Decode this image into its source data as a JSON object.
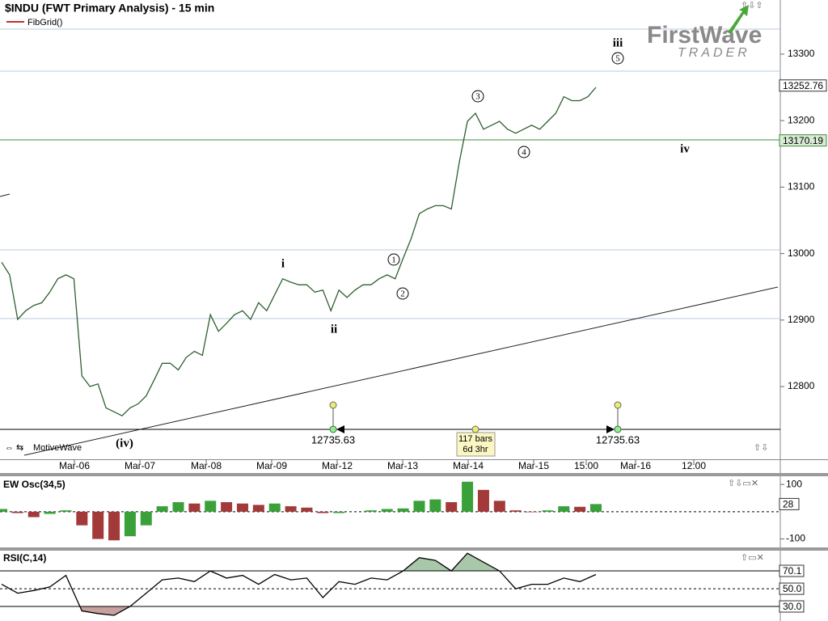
{
  "title": "$INDU (FWT Primary Analysis) - 15 min",
  "study": "FibGrid()",
  "workspace": "MotiveWave",
  "logo": {
    "name": "FirstWave",
    "tagline": "TRADER"
  },
  "chart_data": [
    {
      "type": "line",
      "color": "#2f5f2f",
      "ylim": [
        12690.6,
        13381.4
      ],
      "yticks": [
        12800,
        12900,
        13000,
        13100,
        13200,
        13300
      ],
      "xticks": [
        "Mar-06",
        "Mar-07",
        "Mar-08",
        "Mar-09",
        "Mar-12",
        "Mar-13",
        "Mar-14",
        "Mar-15",
        "15:00",
        "Mar-16",
        "12:00"
      ],
      "values": [
        12987,
        12968,
        12901,
        12914,
        12922,
        12926,
        12942,
        12962,
        12968,
        12962,
        12816,
        12800,
        12804,
        12768,
        12762,
        12756,
        12768,
        12774,
        12786,
        12810,
        12835,
        12835,
        12825,
        12844,
        12853,
        12847,
        12908,
        12883,
        12895,
        12908,
        12914,
        12901,
        12926,
        12914,
        12938,
        12962,
        12957,
        12953,
        12953,
        12942,
        12945,
        12914,
        12945,
        12934,
        12945,
        12953,
        12953,
        12962,
        12968,
        12962,
        12993,
        13023,
        13060,
        13067,
        13072,
        13072,
        13067,
        13138,
        13199,
        13211,
        13187,
        13193,
        13199,
        13187,
        13181,
        13187,
        13193,
        13187,
        13199,
        13211,
        13236,
        13230,
        13230,
        13236,
        13250
      ],
      "last_price": 13252.76,
      "fib_level": 13170.19,
      "measure_level": 12735.63,
      "measure_bars": "117 bars",
      "measure_time": "6d 3hr",
      "wave_labels": [
        "i",
        "ii",
        "iii",
        "iv",
        "(iv)",
        "1",
        "2",
        "3",
        "4",
        "5"
      ]
    },
    {
      "type": "bar",
      "title": "EW Osc(34,5)",
      "up_color": "#3aa13a",
      "down_color": "#a33a3a",
      "ylim": [
        -131,
        130
      ],
      "yticks": [
        100,
        -100
      ],
      "current_value": 28,
      "values": [
        10,
        -5,
        -20,
        -8,
        5,
        -50,
        -100,
        -105,
        -90,
        -50,
        20,
        35,
        30,
        40,
        35,
        30,
        25,
        30,
        20,
        15,
        -5,
        -5,
        0,
        5,
        10,
        12,
        40,
        45,
        35,
        110,
        80,
        40,
        5,
        -2,
        5,
        20,
        18,
        28
      ]
    },
    {
      "type": "line",
      "title": "RSI(C,14)",
      "color": "#000000",
      "over_color": "#a9c7a9",
      "under_color": "#c7a0a0",
      "ylim": [
        13.6,
        92
      ],
      "yticks": [
        70.1,
        {
          "value": 50,
          "label": "50.0"
        },
        {
          "value": 30,
          "label": "30.0"
        }
      ],
      "values": [
        55,
        45,
        48,
        52,
        65,
        25,
        22,
        20,
        30,
        45,
        60,
        62,
        58,
        70,
        62,
        65,
        55,
        66,
        60,
        62,
        40,
        58,
        55,
        62,
        60,
        70,
        85,
        82,
        70,
        90,
        80,
        70,
        50,
        55,
        55,
        62,
        58,
        66
      ]
    }
  ]
}
